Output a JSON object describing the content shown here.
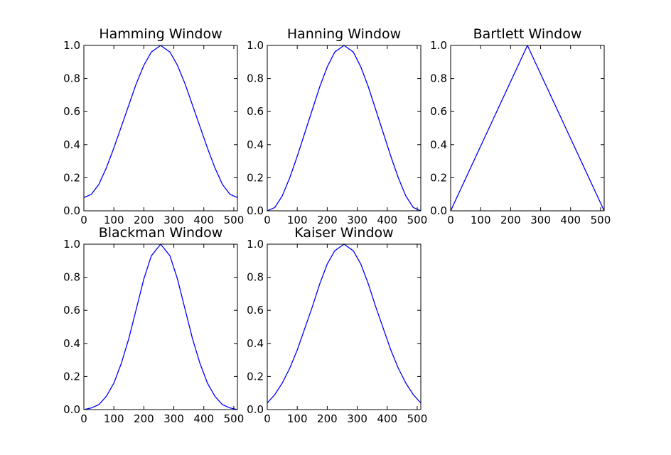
{
  "chart_data": [
    {
      "type": "line",
      "title": "Hamming Window",
      "xlim": [
        0,
        512
      ],
      "ylim": [
        0.0,
        1.0
      ],
      "x_ticks": [
        "0",
        "100",
        "200",
        "300",
        "400",
        "500"
      ],
      "y_ticks": [
        "0.0",
        "0.2",
        "0.4",
        "0.6",
        "0.8",
        "1.0"
      ],
      "series": [
        {
          "color": "#0000ff",
          "x": [
            0,
            25,
            50,
            75,
            100,
            125,
            150,
            175,
            200,
            225,
            256,
            287,
            312,
            337,
            362,
            387,
            412,
            437,
            462,
            487,
            512
          ],
          "y": [
            0.08,
            0.1,
            0.16,
            0.26,
            0.38,
            0.51,
            0.64,
            0.77,
            0.88,
            0.96,
            1.0,
            0.96,
            0.88,
            0.77,
            0.64,
            0.51,
            0.38,
            0.26,
            0.16,
            0.1,
            0.08
          ]
        }
      ]
    },
    {
      "type": "line",
      "title": "Hanning Window",
      "xlim": [
        0,
        512
      ],
      "ylim": [
        0.0,
        1.0
      ],
      "x_ticks": [
        "0",
        "100",
        "200",
        "300",
        "400",
        "500"
      ],
      "y_ticks": [
        "0.0",
        "0.2",
        "0.4",
        "0.6",
        "0.8",
        "1.0"
      ],
      "series": [
        {
          "color": "#0000ff",
          "x": [
            0,
            25,
            50,
            75,
            100,
            125,
            150,
            175,
            200,
            225,
            256,
            287,
            312,
            337,
            362,
            387,
            412,
            437,
            462,
            487,
            512
          ],
          "y": [
            0.0,
            0.02,
            0.09,
            0.2,
            0.33,
            0.47,
            0.61,
            0.75,
            0.87,
            0.96,
            1.0,
            0.96,
            0.87,
            0.75,
            0.61,
            0.47,
            0.33,
            0.2,
            0.09,
            0.02,
            0.0
          ]
        }
      ]
    },
    {
      "type": "line",
      "title": "Bartlett Window",
      "xlim": [
        0,
        512
      ],
      "ylim": [
        0.0,
        1.0
      ],
      "x_ticks": [
        "0",
        "100",
        "200",
        "300",
        "400",
        "500"
      ],
      "y_ticks": [
        "0.0",
        "0.2",
        "0.4",
        "0.6",
        "0.8",
        "1.0"
      ],
      "series": [
        {
          "color": "#0000ff",
          "x": [
            0,
            256,
            512
          ],
          "y": [
            0.0,
            1.0,
            0.0
          ]
        }
      ]
    },
    {
      "type": "line",
      "title": "Blackman Window",
      "xlim": [
        0,
        512
      ],
      "ylim": [
        0.0,
        1.0
      ],
      "x_ticks": [
        "0",
        "100",
        "200",
        "300",
        "400",
        "500"
      ],
      "y_ticks": [
        "0.0",
        "0.2",
        "0.4",
        "0.6",
        "0.8",
        "1.0"
      ],
      "series": [
        {
          "color": "#0000ff",
          "x": [
            0,
            25,
            50,
            75,
            100,
            125,
            150,
            175,
            200,
            225,
            256,
            287,
            312,
            337,
            362,
            387,
            412,
            437,
            462,
            487,
            512
          ],
          "y": [
            0.0,
            0.01,
            0.03,
            0.08,
            0.16,
            0.28,
            0.43,
            0.61,
            0.79,
            0.93,
            1.0,
            0.93,
            0.79,
            0.61,
            0.43,
            0.28,
            0.16,
            0.08,
            0.03,
            0.01,
            0.0
          ]
        }
      ]
    },
    {
      "type": "line",
      "title": "Kaiser Window",
      "xlim": [
        0,
        512
      ],
      "ylim": [
        0.0,
        1.0
      ],
      "x_ticks": [
        "0",
        "100",
        "200",
        "300",
        "400",
        "500"
      ],
      "y_ticks": [
        "0.0",
        "0.2",
        "0.4",
        "0.6",
        "0.8",
        "1.0"
      ],
      "series": [
        {
          "color": "#0000ff",
          "x": [
            0,
            25,
            50,
            75,
            100,
            125,
            150,
            175,
            200,
            225,
            256,
            287,
            312,
            337,
            362,
            387,
            412,
            437,
            462,
            487,
            512
          ],
          "y": [
            0.04,
            0.09,
            0.16,
            0.25,
            0.36,
            0.49,
            0.62,
            0.76,
            0.88,
            0.96,
            1.0,
            0.96,
            0.88,
            0.76,
            0.62,
            0.49,
            0.36,
            0.25,
            0.16,
            0.09,
            0.04
          ]
        }
      ]
    }
  ]
}
